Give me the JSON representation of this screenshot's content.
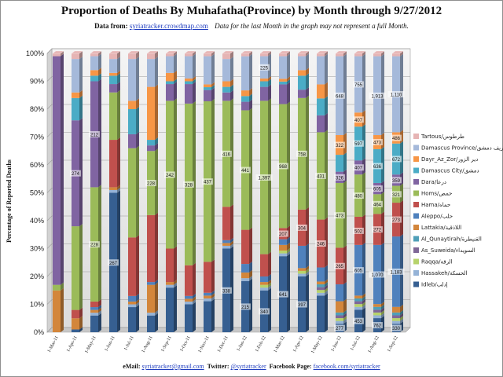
{
  "title": "Proportion of Deaths By Muhafatha(Province) by Month through 9/27/2012",
  "subtitle": {
    "data_label": "Data from:",
    "source_link": "syriatracker.crowdmap.com",
    "note": "Data for the last Month in the graph may not represent a full Month."
  },
  "footer": {
    "email_label": "eMail:",
    "email": "syriatracker@gmail.com",
    "twitter_label": "Twitter:",
    "twitter": "@syriatracker",
    "facebook_label": "Facebook Page:",
    "facebook": "facebook.com/syriatracker"
  },
  "chart_data": {
    "type": "bar",
    "stacked": true,
    "percent_stacked": true,
    "grid": true,
    "legend_position": "right",
    "ylabel": "Percentage of Reported Deaths",
    "xlabel": "",
    "ylim": [
      0,
      100
    ],
    "y_ticks": [
      "0%",
      "10%",
      "20%",
      "30%",
      "40%",
      "50%",
      "60%",
      "70%",
      "80%",
      "90%",
      "100%"
    ],
    "categories": [
      "1-Mar-11",
      "1-Apr-11",
      "1-May-11",
      "1-Jun-11",
      "1-Jul-11",
      "1-Aug-11",
      "1-Sep-11",
      "1-Oct-11",
      "1-Nov-11",
      "1-Dec-11",
      "1-Jan-12",
      "1-Feb-12",
      "1-Mar-12",
      "1-Apr-12",
      "1-May-12",
      "1-Jun-12",
      "1-Jul-12",
      "1-Aug-12",
      "1-Sep-12"
    ],
    "series": [
      {
        "name": "Idleb/إدلب",
        "color": "#365f91",
        "values": [
          0,
          1,
          6,
          50,
          9,
          6,
          16,
          10,
          11,
          30,
          18,
          15,
          27,
          20,
          13,
          3,
          8,
          5,
          3
        ]
      },
      {
        "name": "Hassakeh/الحسكة",
        "color": "#95b3d7",
        "values": [
          0,
          0,
          1,
          1,
          1,
          1,
          1,
          1,
          1,
          1,
          1,
          1,
          1,
          1,
          1,
          1,
          1,
          1,
          1
        ]
      },
      {
        "name": "Raqqa/الرقة",
        "color": "#b7d36b",
        "values": [
          0,
          0,
          0,
          0,
          0,
          0,
          0,
          0,
          0,
          0,
          0,
          1,
          1,
          1,
          1,
          1,
          1,
          1,
          1
        ]
      },
      {
        "name": "As_Suweida/السويداء",
        "color": "#7f6798",
        "values": [
          0,
          0,
          0,
          0,
          0,
          0,
          0,
          0,
          0,
          0,
          0,
          0,
          0,
          0,
          1,
          1,
          1,
          1,
          1
        ]
      },
      {
        "name": "Al_Qunaytirah/القنيطرة",
        "color": "#4f9fb8",
        "values": [
          0,
          0,
          0,
          0,
          0,
          0,
          0,
          0,
          0,
          0,
          0,
          0,
          0,
          0,
          1,
          1,
          1,
          1,
          1
        ]
      },
      {
        "name": "Lattakia/اللاذقية",
        "color": "#d3863b",
        "values": [
          15,
          4,
          1,
          1,
          1,
          10,
          1,
          1,
          1,
          1,
          2,
          1,
          2,
          1,
          1,
          4,
          1,
          1,
          2
        ]
      },
      {
        "name": "Aleppo/حلب",
        "color": "#4f81bd",
        "values": [
          0,
          0,
          1,
          0,
          2,
          1,
          0,
          1,
          1,
          1,
          3,
          2,
          2,
          8,
          5,
          6,
          18,
          21,
          25
        ]
      },
      {
        "name": "Hama/حماه",
        "color": "#c0504d",
        "values": [
          0,
          3,
          2,
          17,
          21,
          24,
          12,
          11,
          11,
          12,
          12,
          8,
          4,
          13,
          17,
          13,
          10,
          11,
          12
        ]
      },
      {
        "name": "Homs/حمص",
        "color": "#9bbb59",
        "values": [
          2,
          30,
          41,
          17,
          32,
          23,
          53,
          58,
          57,
          38,
          42,
          55,
          44,
          40,
          31,
          23,
          15,
          7,
          6
        ]
      },
      {
        "name": "Dara/درعا",
        "color": "#8064a2",
        "values": [
          82,
          38,
          38,
          3,
          5,
          2,
          6,
          7,
          4,
          3,
          3,
          5,
          7,
          3,
          6,
          4,
          5,
          4,
          4
        ]
      },
      {
        "name": "Damascus City/دمشق",
        "color": "#4bacc6",
        "values": [
          0,
          8,
          2,
          3,
          9,
          2,
          1,
          1,
          1,
          2,
          2,
          2,
          1,
          5,
          6,
          6,
          12,
          12,
          11
        ]
      },
      {
        "name": "Dayr_Az_Zor/دير الزور",
        "color": "#f79646",
        "values": [
          0,
          2,
          2,
          1,
          3,
          19,
          3,
          1,
          1,
          2,
          2,
          1,
          1,
          2,
          5,
          7,
          5,
          5,
          4
        ]
      },
      {
        "name": "Damascus Province/ريف دمشق",
        "color": "#a5b9da",
        "values": [
          0,
          12,
          5,
          5,
          15,
          10,
          6,
          8,
          10,
          8,
          12,
          8,
          8,
          5,
          10,
          28,
          20,
          28,
          27
        ]
      },
      {
        "name": "Tartous/طرطوس",
        "color": "#e6b4b4",
        "values": [
          1,
          2,
          1,
          2,
          2,
          2,
          1,
          1,
          1,
          2,
          1,
          1,
          1,
          1,
          1,
          1,
          1,
          1,
          1
        ]
      }
    ],
    "data_labels": [
      {
        "category": "1-Apr-11",
        "series": "Dara/درعا",
        "text": "274"
      },
      {
        "category": "1-May-11",
        "series": "Dara/درعا",
        "text": "212"
      },
      {
        "category": "1-May-11",
        "series": "Homs/حمص",
        "text": "228"
      },
      {
        "category": "1-Jun-11",
        "series": "Idleb/إدلب",
        "text": "267"
      },
      {
        "category": "1-Aug-11",
        "series": "Homs/حمص",
        "text": "228"
      },
      {
        "category": "1-Sep-11",
        "series": "Homs/حمص",
        "text": "242"
      },
      {
        "category": "1-Oct-11",
        "series": "Homs/حمص",
        "text": "328"
      },
      {
        "category": "1-Nov-11",
        "series": "Homs/حمص",
        "text": "437"
      },
      {
        "category": "1-Dec-11",
        "series": "Homs/حمص",
        "text": "416"
      },
      {
        "category": "1-Dec-11",
        "series": "Idleb/إدلب",
        "text": "338"
      },
      {
        "category": "1-Jan-12",
        "series": "Homs/حمص",
        "text": "441"
      },
      {
        "category": "1-Jan-12",
        "series": "Idleb/إدلب",
        "text": "215"
      },
      {
        "category": "1-Feb-12",
        "series": "Homs/حمص",
        "text": "1,397"
      },
      {
        "category": "1-Feb-12",
        "series": "Damascus Province/ريف دمشق",
        "text": "225"
      },
      {
        "category": "1-Feb-12",
        "series": "Idleb/إدلب",
        "text": "340"
      },
      {
        "category": "1-Mar-12",
        "series": "Homs/حمص",
        "text": "968"
      },
      {
        "category": "1-Mar-12",
        "series": "Hama/حماه",
        "text": "207"
      },
      {
        "category": "1-Mar-12",
        "series": "Idleb/إدلب",
        "text": "641"
      },
      {
        "category": "1-Apr-12",
        "series": "Homs/حمص",
        "text": "758"
      },
      {
        "category": "1-Apr-12",
        "series": "Hama/حماه",
        "text": "304"
      },
      {
        "category": "1-Apr-12",
        "series": "Idleb/إدلب",
        "text": "397"
      },
      {
        "category": "1-May-12",
        "series": "Homs/حمص",
        "text": "431"
      },
      {
        "category": "1-May-12",
        "series": "Hama/حماه",
        "text": "246"
      },
      {
        "category": "1-Jun-12",
        "series": "Damascus Province/ريف دمشق",
        "text": "648"
      },
      {
        "category": "1-Jun-12",
        "series": "Dayr_Az_Zor/دير الزور",
        "text": "322"
      },
      {
        "category": "1-Jun-12",
        "series": "Dara/درعا",
        "text": "326"
      },
      {
        "category": "1-Jun-12",
        "series": "Homs/حمص",
        "text": "473"
      },
      {
        "category": "1-Jun-12",
        "series": "Hama/حماه",
        "text": "265"
      },
      {
        "category": "1-Jun-12",
        "series": "Idleb/إدلب",
        "text": "277"
      },
      {
        "category": "1-Jul-12",
        "series": "Damascus Province/ريف دمشق",
        "text": "755"
      },
      {
        "category": "1-Jul-12",
        "series": "Dayr_Az_Zor/دير الزور",
        "text": "407"
      },
      {
        "category": "1-Jul-12",
        "series": "Damascus City/دمشق",
        "text": "597"
      },
      {
        "category": "1-Jul-12",
        "series": "Dara/درعا",
        "text": "407"
      },
      {
        "category": "1-Jul-12",
        "series": "Homs/حمص",
        "text": "480"
      },
      {
        "category": "1-Jul-12",
        "series": "Hama/حماه",
        "text": "502"
      },
      {
        "category": "1-Jul-12",
        "series": "Aleppo/حلب",
        "text": "605"
      },
      {
        "category": "1-Jul-12",
        "series": "Idleb/إدلب",
        "text": "453"
      },
      {
        "category": "1-Aug-12",
        "series": "Damascus Province/ريف دمشق",
        "text": "1,913"
      },
      {
        "category": "1-Aug-12",
        "series": "Dayr_Az_Zor/دير الزور",
        "text": "473"
      },
      {
        "category": "1-Aug-12",
        "series": "Damascus City/دمشق",
        "text": "636"
      },
      {
        "category": "1-Aug-12",
        "series": "Dara/درعا",
        "text": "605"
      },
      {
        "category": "1-Aug-12",
        "series": "Homs/حمص",
        "text": "464"
      },
      {
        "category": "1-Aug-12",
        "series": "Hama/حماه",
        "text": "272"
      },
      {
        "category": "1-Aug-12",
        "series": "Aleppo/حلب",
        "text": "1,070"
      },
      {
        "category": "1-Aug-12",
        "series": "Idleb/إدلب",
        "text": "762"
      },
      {
        "category": "1-Sep-12",
        "series": "Damascus Province/ريف دمشق",
        "text": "1,110"
      },
      {
        "category": "1-Sep-12",
        "series": "Dayr_Az_Zor/دير الزور",
        "text": "486"
      },
      {
        "category": "1-Sep-12",
        "series": "Damascus City/دمشق",
        "text": "672"
      },
      {
        "category": "1-Sep-12",
        "series": "Dara/درعا",
        "text": "359"
      },
      {
        "category": "1-Sep-12",
        "series": "Homs/حمص",
        "text": "321"
      },
      {
        "category": "1-Sep-12",
        "series": "Hama/حماه",
        "text": "273"
      },
      {
        "category": "1-Sep-12",
        "series": "Aleppo/حلب",
        "text": "1,183"
      },
      {
        "category": "1-Sep-12",
        "series": "Idleb/إدلب",
        "text": "330"
      }
    ]
  }
}
